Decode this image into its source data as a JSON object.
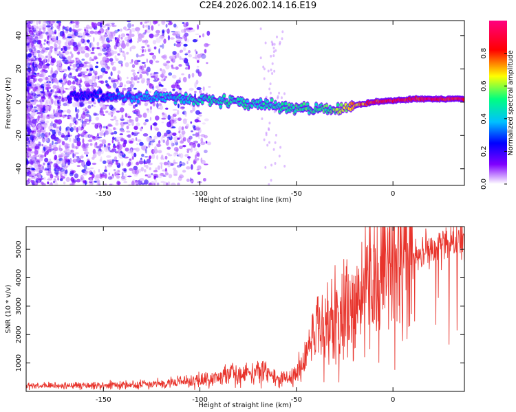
{
  "title": "C2E4.2026.002.14.16.E19",
  "chart_data": [
    {
      "type": "heatmap",
      "xlabel": "Height of straight line (km)",
      "ylabel": "Frequency (Hz)",
      "xlim": [
        -190,
        37
      ],
      "ylim": [
        -50,
        49
      ],
      "x_ticks": [
        -150,
        -100,
        -50,
        0
      ],
      "y_ticks": [
        -40,
        -20,
        0,
        20,
        40
      ],
      "x_tick_labels": [
        "-150",
        "-100",
        "-50",
        "0"
      ],
      "y_tick_labels": [
        "-40",
        "-20",
        "0",
        "20",
        "40"
      ],
      "ridge": {
        "x": [
          -168,
          -150,
          -130,
          -110,
          -90,
          -70,
          -55,
          -45,
          -35,
          -28,
          -20,
          -10,
          0,
          10,
          20,
          30,
          37
        ],
        "frequency": [
          4,
          4,
          3,
          2,
          1,
          -1,
          -3,
          -4,
          -5,
          -4,
          -2,
          0,
          1,
          2,
          2,
          2,
          2
        ],
        "amplitude": [
          0.25,
          0.3,
          0.4,
          0.45,
          0.5,
          0.5,
          0.55,
          0.55,
          0.55,
          0.6,
          0.75,
          0.9,
          0.95,
          0.95,
          0.95,
          0.95,
          0.95
        ]
      },
      "colorbar": {
        "label": "Normalized spectral amplitude",
        "range": [
          0,
          1
        ],
        "ticks": [
          0.0,
          0.2,
          0.4,
          0.6,
          0.8
        ],
        "tick_labels": [
          "0.0",
          "0.2",
          "0.4",
          "0.6",
          "0.8"
        ],
        "colors": [
          "#ffffff",
          "#8000ff",
          "#0000ff",
          "#00c0ff",
          "#00ff80",
          "#ffff00",
          "#ff0000",
          "#ff0080"
        ]
      }
    },
    {
      "type": "line",
      "xlabel": "Height of straight line (km)",
      "ylabel": "SNR (10 * v/v)",
      "xlim": [
        -190,
        37
      ],
      "ylim": [
        0,
        5800
      ],
      "x_ticks": [
        -150,
        -100,
        -50,
        0
      ],
      "y_ticks": [
        1000,
        2000,
        3000,
        4000,
        5000
      ],
      "x_tick_labels": [
        "-150",
        "-100",
        "-50",
        "0"
      ],
      "y_tick_labels": [
        "1000",
        "2000",
        "3000",
        "4000",
        "5000"
      ],
      "color": "#e8342c",
      "envelope": {
        "x": [
          -190,
          -160,
          -130,
          -110,
          -100,
          -90,
          -80,
          -70,
          -62,
          -55,
          -50,
          -45,
          -40,
          -35,
          -30,
          -25,
          -20,
          -15,
          -10,
          -5,
          0,
          5,
          10,
          15,
          20,
          25,
          30,
          37
        ],
        "snr": [
          180,
          200,
          240,
          320,
          400,
          500,
          650,
          700,
          550,
          420,
          600,
          1200,
          1900,
          2300,
          2600,
          2700,
          2900,
          3300,
          3800,
          4200,
          4400,
          4600,
          4800,
          4900,
          5000,
          5150,
          5300,
          5450
        ]
      }
    }
  ]
}
